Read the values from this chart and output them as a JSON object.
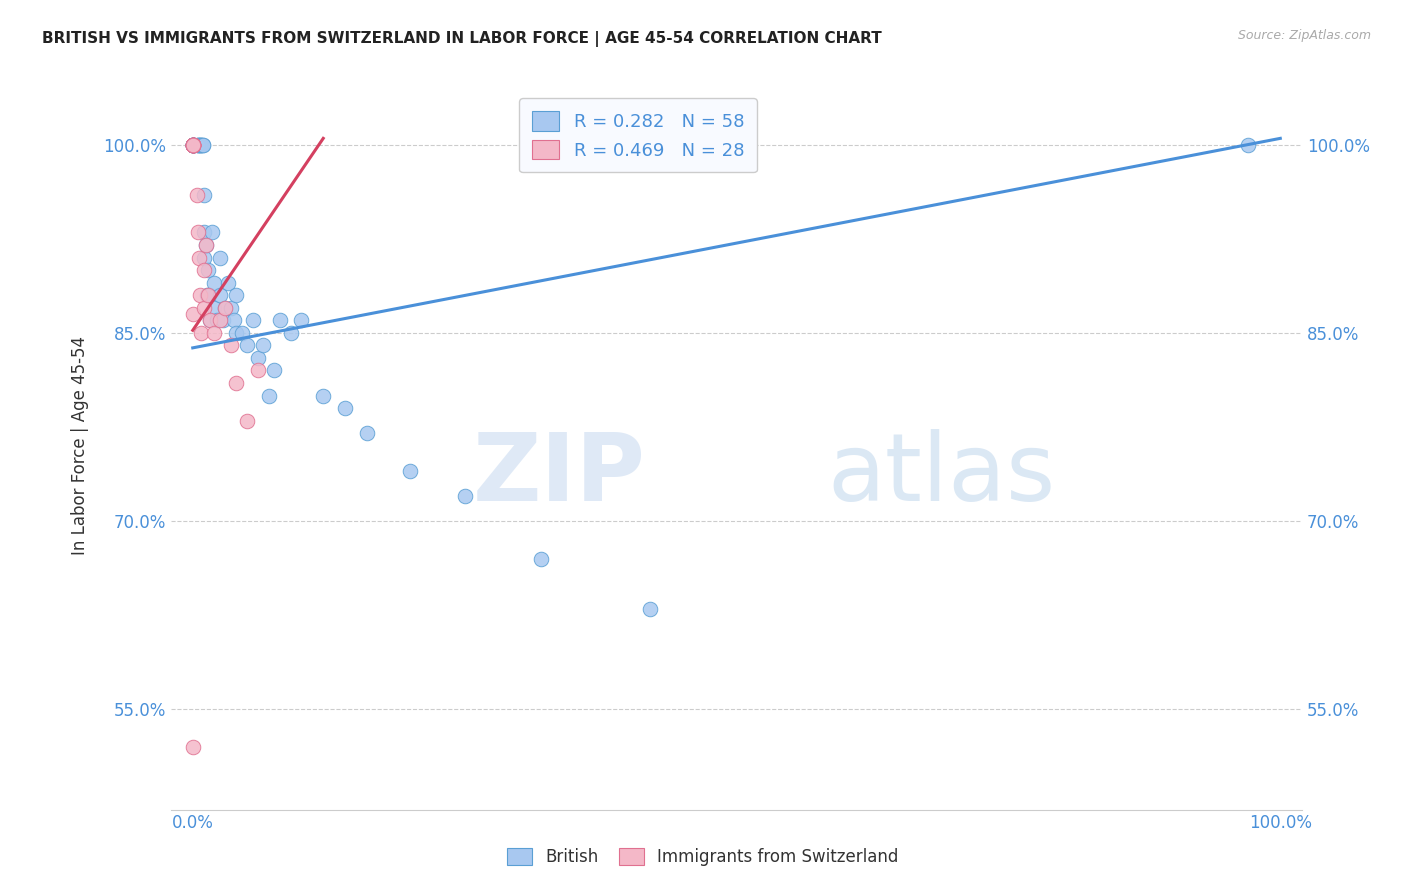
{
  "title": "BRITISH VS IMMIGRANTS FROM SWITZERLAND IN LABOR FORCE | AGE 45-54 CORRELATION CHART",
  "source": "Source: ZipAtlas.com",
  "ylabel": "In Labor Force | Age 45-54",
  "xlim": [
    -0.02,
    1.02
  ],
  "ylim": [
    0.47,
    1.05
  ],
  "ytick_labels": [
    "55.0%",
    "70.0%",
    "85.0%",
    "100.0%"
  ],
  "ytick_values": [
    0.55,
    0.7,
    0.85,
    1.0
  ],
  "xtick_labels": [
    "0.0%",
    "100.0%"
  ],
  "xtick_values": [
    0.0,
    1.0
  ],
  "blue_R": 0.282,
  "blue_N": 58,
  "pink_R": 0.469,
  "pink_N": 28,
  "blue_color": "#a8c8f0",
  "pink_color": "#f4b8c8",
  "blue_edge_color": "#5a9fd4",
  "pink_edge_color": "#e07090",
  "blue_line_color": "#4a90d9",
  "pink_line_color": "#d44060",
  "legend_bg": "#f8faff",
  "title_color": "#222222",
  "label_color": "#333333",
  "tick_color": "#4a90d9",
  "grid_color": "#cccccc",
  "watermark": "ZIPatlas",
  "blue_trendline_x": [
    0.0,
    1.0
  ],
  "blue_trendline_y": [
    0.838,
    1.005
  ],
  "pink_trendline_x": [
    0.0,
    0.12
  ],
  "pink_trendline_y": [
    0.852,
    1.005
  ],
  "blue_scatter_x": [
    0.0,
    0.0,
    0.0,
    0.0,
    0.0,
    0.0,
    0.0,
    0.0,
    0.0,
    0.0,
    0.005,
    0.005,
    0.005,
    0.007,
    0.007,
    0.008,
    0.008,
    0.009,
    0.009,
    0.01,
    0.01,
    0.01,
    0.012,
    0.013,
    0.014,
    0.015,
    0.016,
    0.018,
    0.02,
    0.02,
    0.022,
    0.025,
    0.025,
    0.028,
    0.03,
    0.032,
    0.035,
    0.038,
    0.04,
    0.04,
    0.045,
    0.05,
    0.055,
    0.06,
    0.065,
    0.07,
    0.075,
    0.08,
    0.09,
    0.1,
    0.12,
    0.14,
    0.16,
    0.2,
    0.25,
    0.32,
    0.42,
    0.97
  ],
  "blue_scatter_y": [
    1.0,
    1.0,
    1.0,
    1.0,
    1.0,
    1.0,
    1.0,
    1.0,
    1.0,
    1.0,
    1.0,
    1.0,
    1.0,
    1.0,
    1.0,
    1.0,
    1.0,
    1.0,
    1.0,
    0.96,
    0.93,
    0.91,
    0.92,
    0.88,
    0.9,
    0.88,
    0.86,
    0.93,
    0.89,
    0.87,
    0.86,
    0.91,
    0.88,
    0.86,
    0.87,
    0.89,
    0.87,
    0.86,
    0.88,
    0.85,
    0.85,
    0.84,
    0.86,
    0.83,
    0.84,
    0.8,
    0.82,
    0.86,
    0.85,
    0.86,
    0.8,
    0.79,
    0.77,
    0.74,
    0.72,
    0.67,
    0.63,
    1.0
  ],
  "pink_scatter_x": [
    0.0,
    0.0,
    0.0,
    0.0,
    0.0,
    0.0,
    0.0,
    0.0,
    0.0,
    0.0,
    0.004,
    0.005,
    0.006,
    0.007,
    0.008,
    0.01,
    0.01,
    0.012,
    0.014,
    0.016,
    0.02,
    0.025,
    0.03,
    0.035,
    0.04,
    0.05,
    0.06,
    0.0
  ],
  "pink_scatter_y": [
    1.0,
    1.0,
    1.0,
    1.0,
    1.0,
    1.0,
    1.0,
    1.0,
    1.0,
    0.865,
    0.96,
    0.93,
    0.91,
    0.88,
    0.85,
    0.9,
    0.87,
    0.92,
    0.88,
    0.86,
    0.85,
    0.86,
    0.87,
    0.84,
    0.81,
    0.78,
    0.82,
    0.52
  ]
}
